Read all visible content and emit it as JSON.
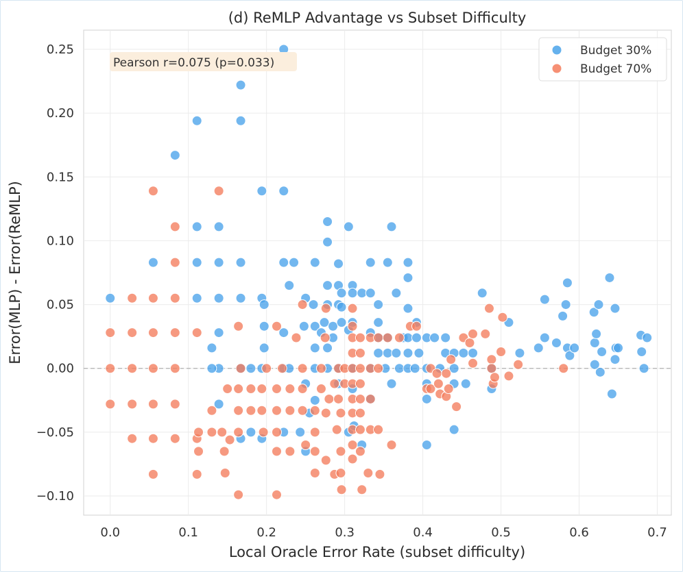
{
  "chart_data": {
    "type": "scatter",
    "title": "(d) ReMLP Advantage vs Subset Difficulty",
    "xlabel": "Local Oracle Error Rate (subset difficulty)",
    "ylabel": "Error(MLP) - Error(ReMLP)",
    "xlim": [
      -0.034,
      0.718
    ],
    "ylim": [
      -0.115,
      0.265
    ],
    "xticks": [
      0.0,
      0.1,
      0.2,
      0.3,
      0.4,
      0.5,
      0.6,
      0.7
    ],
    "xtick_labels": [
      "0.0",
      "0.1",
      "0.2",
      "0.3",
      "0.4",
      "0.5",
      "0.6",
      "0.7"
    ],
    "yticks": [
      -0.1,
      -0.05,
      0.0,
      0.05,
      0.1,
      0.15,
      0.2,
      0.25
    ],
    "ytick_labels": [
      "−0.10",
      "−0.05",
      "0.00",
      "0.05",
      "0.10",
      "0.15",
      "0.20",
      "0.25"
    ],
    "grid": true,
    "reference_line_y": 0.0,
    "legend_position": "top-right",
    "annotation": "Pearson r=0.075 (p=0.033)",
    "series": [
      {
        "name": "Budget 30%",
        "color": "#4aa3ea",
        "points": [
          [
            0.0,
            0.055
          ],
          [
            0.055,
            0.083
          ],
          [
            0.083,
            0.167
          ],
          [
            0.111,
            0.194
          ],
          [
            0.111,
            0.111
          ],
          [
            0.111,
            0.083
          ],
          [
            0.111,
            0.055
          ],
          [
            0.139,
            0.111
          ],
          [
            0.139,
            0.083
          ],
          [
            0.139,
            0.055
          ],
          [
            0.139,
            0.028
          ],
          [
            0.139,
            0.0
          ],
          [
            0.139,
            -0.028
          ],
          [
            0.167,
            0.222
          ],
          [
            0.167,
            0.194
          ],
          [
            0.167,
            0.083
          ],
          [
            0.167,
            0.055
          ],
          [
            0.167,
            0.0
          ],
          [
            0.167,
            -0.055
          ],
          [
            0.13,
            0.016
          ],
          [
            0.13,
            0.0
          ],
          [
            0.18,
            0.0
          ],
          [
            0.18,
            -0.05
          ],
          [
            0.194,
            0.139
          ],
          [
            0.194,
            0.055
          ],
          [
            0.194,
            0.0
          ],
          [
            0.194,
            -0.055
          ],
          [
            0.197,
            0.05
          ],
          [
            0.197,
            0.033
          ],
          [
            0.197,
            0.016
          ],
          [
            0.222,
            0.25
          ],
          [
            0.222,
            0.139
          ],
          [
            0.222,
            0.083
          ],
          [
            0.222,
            0.028
          ],
          [
            0.222,
            0.0
          ],
          [
            0.222,
            -0.05
          ],
          [
            0.229,
            0.065
          ],
          [
            0.229,
            0.0
          ],
          [
            0.235,
            0.083
          ],
          [
            0.243,
            -0.05
          ],
          [
            0.248,
            0.033
          ],
          [
            0.25,
            0.055
          ],
          [
            0.25,
            -0.065
          ],
          [
            0.25,
            -0.012
          ],
          [
            0.255,
            -0.035
          ],
          [
            0.26,
            0.05
          ],
          [
            0.262,
            0.083
          ],
          [
            0.262,
            0.033
          ],
          [
            0.262,
            0.016
          ],
          [
            0.262,
            0.0
          ],
          [
            0.262,
            -0.025
          ],
          [
            0.27,
            0.028
          ],
          [
            0.274,
            0.036
          ],
          [
            0.278,
            0.115
          ],
          [
            0.278,
            0.099
          ],
          [
            0.278,
            0.065
          ],
          [
            0.278,
            0.05
          ],
          [
            0.278,
            0.016
          ],
          [
            0.278,
            0.0
          ],
          [
            0.285,
            0.033
          ],
          [
            0.285,
            0.024
          ],
          [
            0.292,
            0.082
          ],
          [
            0.292,
            0.065
          ],
          [
            0.292,
            0.05
          ],
          [
            0.292,
            0.0
          ],
          [
            0.292,
            -0.012
          ],
          [
            0.296,
            0.059
          ],
          [
            0.296,
            0.048
          ],
          [
            0.296,
            0.036
          ],
          [
            0.305,
            0.111
          ],
          [
            0.305,
            0.03
          ],
          [
            0.305,
            -0.05
          ],
          [
            0.31,
            0.065
          ],
          [
            0.31,
            0.059
          ],
          [
            0.31,
            0.036
          ],
          [
            0.31,
            0.0
          ],
          [
            0.31,
            -0.016
          ],
          [
            0.312,
            -0.045
          ],
          [
            0.322,
            0.059
          ],
          [
            0.322,
            -0.06
          ],
          [
            0.333,
            0.083
          ],
          [
            0.333,
            0.059
          ],
          [
            0.333,
            0.028
          ],
          [
            0.333,
            0.0
          ],
          [
            0.333,
            -0.024
          ],
          [
            0.343,
            0.05
          ],
          [
            0.343,
            0.036
          ],
          [
            0.343,
            0.024
          ],
          [
            0.343,
            0.012
          ],
          [
            0.352,
            0.0
          ],
          [
            0.355,
            0.083
          ],
          [
            0.355,
            0.024
          ],
          [
            0.355,
            0.012
          ],
          [
            0.36,
            0.111
          ],
          [
            0.36,
            -0.012
          ],
          [
            0.366,
            0.059
          ],
          [
            0.366,
            0.012
          ],
          [
            0.37,
            0.0
          ],
          [
            0.375,
            0.024
          ],
          [
            0.381,
            0.083
          ],
          [
            0.381,
            0.071
          ],
          [
            0.381,
            0.047
          ],
          [
            0.381,
            0.024
          ],
          [
            0.381,
            0.012
          ],
          [
            0.381,
            0.0
          ],
          [
            0.39,
            0.0
          ],
          [
            0.392,
            0.036
          ],
          [
            0.392,
            0.024
          ],
          [
            0.395,
            0.012
          ],
          [
            0.405,
            0.024
          ],
          [
            0.405,
            0.0
          ],
          [
            0.405,
            -0.012
          ],
          [
            0.405,
            -0.024
          ],
          [
            0.405,
            -0.06
          ],
          [
            0.415,
            0.024
          ],
          [
            0.422,
            0.0
          ],
          [
            0.429,
            0.024
          ],
          [
            0.429,
            0.012
          ],
          [
            0.44,
            0.012
          ],
          [
            0.44,
            0.0
          ],
          [
            0.44,
            -0.012
          ],
          [
            0.44,
            -0.048
          ],
          [
            0.452,
            0.012
          ],
          [
            0.455,
            -0.012
          ],
          [
            0.464,
            0.012
          ],
          [
            0.476,
            0.059
          ],
          [
            0.488,
            0.0
          ],
          [
            0.488,
            -0.016
          ],
          [
            0.51,
            0.036
          ],
          [
            0.524,
            0.012
          ],
          [
            0.548,
            0.016
          ],
          [
            0.556,
            0.054
          ],
          [
            0.556,
            0.024
          ],
          [
            0.571,
            0.02
          ],
          [
            0.579,
            0.041
          ],
          [
            0.583,
            0.05
          ],
          [
            0.585,
            0.067
          ],
          [
            0.585,
            0.016
          ],
          [
            0.588,
            0.01
          ],
          [
            0.594,
            0.016
          ],
          [
            0.619,
            0.044
          ],
          [
            0.62,
            0.02
          ],
          [
            0.62,
            0.003
          ],
          [
            0.622,
            0.027
          ],
          [
            0.625,
            0.05
          ],
          [
            0.627,
            -0.003
          ],
          [
            0.629,
            0.013
          ],
          [
            0.639,
            0.071
          ],
          [
            0.642,
            -0.02
          ],
          [
            0.646,
            0.047
          ],
          [
            0.646,
            0.007
          ],
          [
            0.647,
            0.016
          ],
          [
            0.65,
            0.016
          ],
          [
            0.679,
            0.026
          ],
          [
            0.68,
            0.013
          ],
          [
            0.683,
            0.0
          ],
          [
            0.687,
            0.024
          ]
        ]
      },
      {
        "name": "Budget 70%",
        "color": "#f47c5c",
        "points": [
          [
            0.0,
            0.028
          ],
          [
            0.0,
            0.0
          ],
          [
            0.0,
            -0.028
          ],
          [
            0.028,
            0.055
          ],
          [
            0.028,
            0.028
          ],
          [
            0.028,
            0.0
          ],
          [
            0.028,
            -0.028
          ],
          [
            0.028,
            -0.055
          ],
          [
            0.055,
            0.139
          ],
          [
            0.055,
            0.055
          ],
          [
            0.055,
            0.028
          ],
          [
            0.055,
            0.0
          ],
          [
            0.055,
            -0.028
          ],
          [
            0.055,
            -0.055
          ],
          [
            0.055,
            -0.083
          ],
          [
            0.083,
            0.111
          ],
          [
            0.083,
            0.083
          ],
          [
            0.083,
            0.055
          ],
          [
            0.083,
            0.028
          ],
          [
            0.083,
            0.0
          ],
          [
            0.083,
            -0.028
          ],
          [
            0.083,
            -0.055
          ],
          [
            0.111,
            0.028
          ],
          [
            0.111,
            -0.055
          ],
          [
            0.111,
            -0.083
          ],
          [
            0.113,
            -0.05
          ],
          [
            0.113,
            -0.065
          ],
          [
            0.13,
            -0.05
          ],
          [
            0.13,
            -0.033
          ],
          [
            0.139,
            0.139
          ],
          [
            0.143,
            -0.05
          ],
          [
            0.146,
            -0.065
          ],
          [
            0.147,
            -0.082
          ],
          [
            0.15,
            -0.016
          ],
          [
            0.153,
            -0.056
          ],
          [
            0.164,
            0.033
          ],
          [
            0.164,
            -0.016
          ],
          [
            0.164,
            -0.033
          ],
          [
            0.164,
            -0.05
          ],
          [
            0.164,
            -0.099
          ],
          [
            0.167,
            0.0
          ],
          [
            0.18,
            -0.016
          ],
          [
            0.18,
            -0.033
          ],
          [
            0.194,
            -0.016
          ],
          [
            0.194,
            -0.033
          ],
          [
            0.196,
            -0.05
          ],
          [
            0.2,
            0.0
          ],
          [
            0.213,
            0.033
          ],
          [
            0.213,
            -0.016
          ],
          [
            0.213,
            -0.033
          ],
          [
            0.213,
            -0.05
          ],
          [
            0.213,
            -0.065
          ],
          [
            0.213,
            -0.099
          ],
          [
            0.22,
            0.0
          ],
          [
            0.23,
            -0.016
          ],
          [
            0.23,
            -0.033
          ],
          [
            0.23,
            -0.065
          ],
          [
            0.238,
            0.024
          ],
          [
            0.246,
            0.05
          ],
          [
            0.246,
            0.0
          ],
          [
            0.246,
            -0.016
          ],
          [
            0.246,
            -0.033
          ],
          [
            0.25,
            -0.06
          ],
          [
            0.262,
            -0.033
          ],
          [
            0.262,
            -0.05
          ],
          [
            0.262,
            -0.065
          ],
          [
            0.262,
            -0.082
          ],
          [
            0.27,
            0.0
          ],
          [
            0.27,
            -0.016
          ],
          [
            0.275,
            0.024
          ],
          [
            0.276,
            0.047
          ],
          [
            0.276,
            -0.035
          ],
          [
            0.276,
            -0.072
          ],
          [
            0.28,
            -0.024
          ],
          [
            0.287,
            -0.012
          ],
          [
            0.287,
            -0.083
          ],
          [
            0.29,
            -0.048
          ],
          [
            0.292,
            0.0
          ],
          [
            0.292,
            -0.024
          ],
          [
            0.295,
            -0.035
          ],
          [
            0.295,
            -0.065
          ],
          [
            0.295,
            -0.082
          ],
          [
            0.296,
            -0.095
          ],
          [
            0.3,
            0.0
          ],
          [
            0.3,
            -0.012
          ],
          [
            0.31,
            0.047
          ],
          [
            0.31,
            0.033
          ],
          [
            0.31,
            0.024
          ],
          [
            0.31,
            0.012
          ],
          [
            0.31,
            0.0
          ],
          [
            0.31,
            -0.012
          ],
          [
            0.31,
            -0.024
          ],
          [
            0.31,
            -0.035
          ],
          [
            0.31,
            -0.048
          ],
          [
            0.31,
            -0.06
          ],
          [
            0.31,
            -0.071
          ],
          [
            0.32,
            0.024
          ],
          [
            0.32,
            0.012
          ],
          [
            0.32,
            0.0
          ],
          [
            0.32,
            -0.012
          ],
          [
            0.32,
            -0.024
          ],
          [
            0.32,
            -0.035
          ],
          [
            0.32,
            -0.048
          ],
          [
            0.32,
            -0.065
          ],
          [
            0.322,
            -0.095
          ],
          [
            0.33,
            -0.082
          ],
          [
            0.333,
            0.024
          ],
          [
            0.333,
            0.0
          ],
          [
            0.333,
            -0.024
          ],
          [
            0.333,
            -0.048
          ],
          [
            0.343,
            0.024
          ],
          [
            0.343,
            0.0
          ],
          [
            0.343,
            -0.048
          ],
          [
            0.345,
            -0.083
          ],
          [
            0.355,
            0.024
          ],
          [
            0.36,
            -0.06
          ],
          [
            0.37,
            0.024
          ],
          [
            0.384,
            0.033
          ],
          [
            0.392,
            0.033
          ],
          [
            0.405,
            -0.016
          ],
          [
            0.41,
            0.0
          ],
          [
            0.41,
            -0.016
          ],
          [
            0.418,
            -0.004
          ],
          [
            0.42,
            -0.012
          ],
          [
            0.422,
            -0.02
          ],
          [
            0.43,
            -0.004
          ],
          [
            0.43,
            -0.022
          ],
          [
            0.433,
            -0.016
          ],
          [
            0.436,
            0.007
          ],
          [
            0.443,
            -0.03
          ],
          [
            0.452,
            0.024
          ],
          [
            0.46,
            0.02
          ],
          [
            0.464,
            0.027
          ],
          [
            0.464,
            0.004
          ],
          [
            0.48,
            0.027
          ],
          [
            0.485,
            0.047
          ],
          [
            0.488,
            0.007
          ],
          [
            0.488,
            0.0
          ],
          [
            0.49,
            -0.012
          ],
          [
            0.492,
            -0.007
          ],
          [
            0.5,
            0.013
          ],
          [
            0.502,
            0.04
          ],
          [
            0.51,
            -0.006
          ],
          [
            0.522,
            0.003
          ],
          [
            0.58,
            0.0
          ]
        ]
      }
    ]
  }
}
